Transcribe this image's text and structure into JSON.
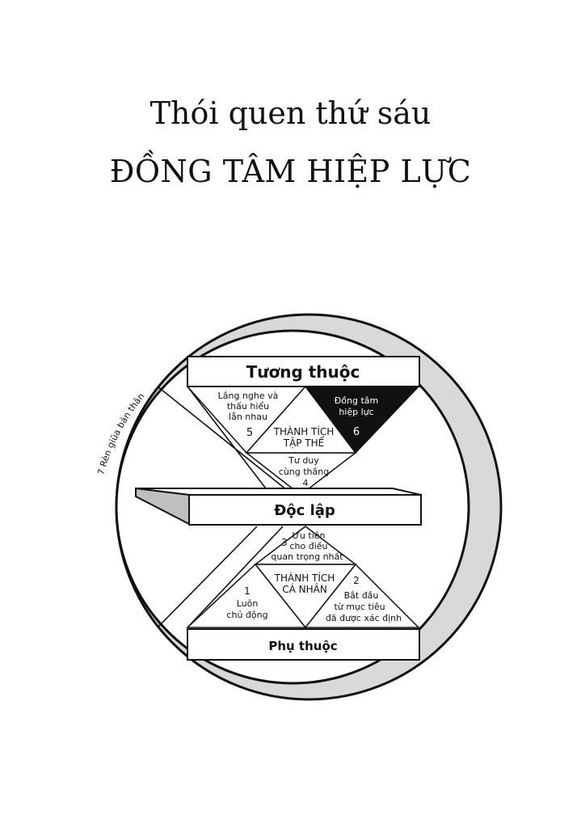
{
  "title_line_1": "Thói quen thứ sáu",
  "title_line_2": "ĐỒNG TÂM HIỆP LỰC",
  "diagram": {
    "arc_label": "7  Rèn giũa bản thân",
    "tiers": {
      "top": "Tương thuộc",
      "middle": "Độc lập",
      "bottom": "Phụ thuộc"
    },
    "upper": {
      "habit5": {
        "line1": "Lắng nghe và",
        "line2": "thấu hiểu",
        "line3": "lẫn nhau",
        "number": "5"
      },
      "habit6": {
        "line1": "Đồng tâm",
        "line2": "hiệp lực",
        "number": "6"
      },
      "center": {
        "line1": "THÀNH TÍCH",
        "line2": "TẬP THỂ"
      },
      "habit4": {
        "line1": "Tư duy",
        "line2": "cùng thắng",
        "number": "4"
      }
    },
    "lower": {
      "habit3": {
        "line1": "Ưu tiên",
        "line2": "cho điều",
        "line3": "quan trọng nhất",
        "number": "3"
      },
      "center": {
        "line1": "THÀNH TÍCH",
        "line2": "CÁ NHÂN"
      },
      "habit1": {
        "number": "1",
        "line1": "Luôn",
        "line2": "chủ động"
      },
      "habit2": {
        "number": "2",
        "line1": "Bắt đầu",
        "line2": "từ mục tiêu",
        "line3": "đã được xác định"
      }
    }
  }
}
